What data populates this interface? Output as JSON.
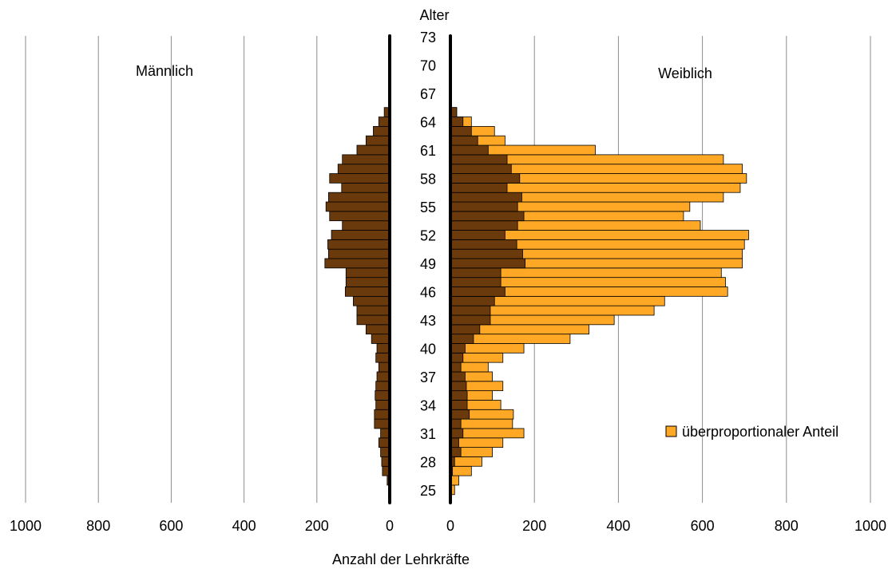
{
  "chart_data": {
    "type": "bar",
    "subtype": "population-pyramid",
    "y_axis_title": "Alter",
    "x_axis_title": "Anzahl der Lehrkräfte",
    "left_panel_label": "Männlich",
    "right_panel_label": "Weiblich",
    "legend": {
      "label": "überproportionaler Anteil",
      "placement": "right"
    },
    "age_tick_labels": [
      "25",
      "28",
      "31",
      "34",
      "37",
      "40",
      "43",
      "46",
      "49",
      "52",
      "55",
      "58",
      "61",
      "64",
      "67",
      "70",
      "73"
    ],
    "left_x_ticks": [
      "1000",
      "800",
      "600",
      "400",
      "200",
      "0"
    ],
    "right_x_ticks": [
      "0",
      "200",
      "400",
      "600",
      "800",
      "1000"
    ],
    "xlim": [
      0,
      1000
    ],
    "age_range": [
      24,
      73
    ],
    "grid": true,
    "colors": {
      "male": "#6b3a0c",
      "female_base": "#6b3a0c",
      "female_excess": "#ffa826",
      "grid": "#8c8c8c",
      "axis": "#000000"
    },
    "ages": [
      24,
      25,
      26,
      27,
      28,
      29,
      30,
      31,
      32,
      33,
      34,
      35,
      36,
      37,
      38,
      39,
      40,
      41,
      42,
      43,
      44,
      45,
      46,
      47,
      48,
      49,
      50,
      51,
      52,
      53,
      54,
      55,
      56,
      57,
      58,
      59,
      60,
      61,
      62,
      63,
      64,
      65
    ],
    "male": [
      0,
      2,
      7,
      20,
      22,
      25,
      30,
      25,
      42,
      42,
      38,
      40,
      38,
      35,
      30,
      38,
      35,
      50,
      65,
      90,
      90,
      100,
      122,
      120,
      120,
      178,
      168,
      170,
      160,
      130,
      165,
      175,
      168,
      132,
      165,
      142,
      130,
      90,
      65,
      45,
      30,
      15
    ],
    "female_base": [
      0,
      0,
      0,
      5,
      10,
      25,
      20,
      30,
      25,
      45,
      40,
      40,
      38,
      35,
      25,
      30,
      35,
      55,
      70,
      95,
      95,
      105,
      130,
      120,
      120,
      178,
      172,
      158,
      130,
      160,
      175,
      160,
      170,
      135,
      165,
      145,
      135,
      90,
      65,
      50,
      30,
      15
    ],
    "female": [
      0,
      10,
      20,
      50,
      75,
      100,
      125,
      175,
      148,
      150,
      120,
      100,
      125,
      100,
      90,
      125,
      175,
      285,
      330,
      390,
      485,
      510,
      660,
      655,
      645,
      695,
      695,
      700,
      710,
      595,
      555,
      570,
      650,
      690,
      705,
      695,
      650,
      345,
      130,
      105,
      50,
      15
    ]
  }
}
